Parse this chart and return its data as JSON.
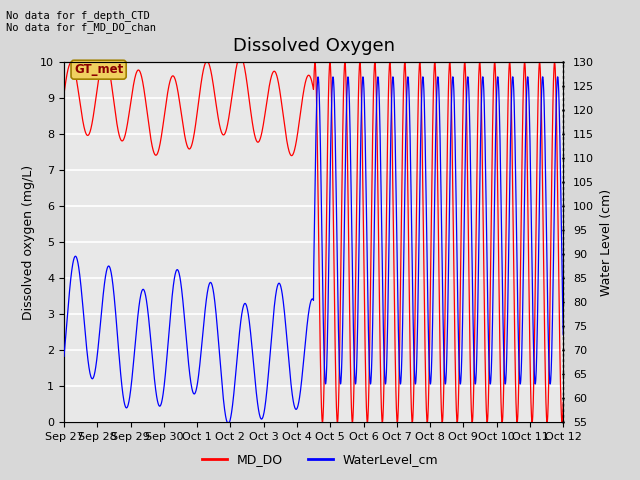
{
  "title": "Dissolved Oxygen",
  "top_left_text": "No data for f_depth_CTD\nNo data for f_MD_DO_chan",
  "gt_met_label": "GT_met",
  "ylabel_left": "Dissolved oxygen (mg/L)",
  "ylabel_right": "Water Level (cm)",
  "ylim_left": [
    0.0,
    10.0
  ],
  "ylim_right": [
    55,
    130
  ],
  "xtick_labels": [
    "Sep 27",
    "Sep 28",
    "Sep 29",
    "Sep 30",
    "Oct 1",
    "Oct 2",
    "Oct 3",
    "Oct 4",
    "Oct 5",
    "Oct 6",
    "Oct 7",
    "Oct 8",
    "Oct 9",
    "Oct 10",
    "Oct 11",
    "Oct 12"
  ],
  "legend_entries": [
    "MD_DO",
    "WaterLevel_cm"
  ],
  "legend_colors": [
    "red",
    "blue"
  ],
  "bg_color": "#d8d8d8",
  "plot_bg_color": "#e8e8e8",
  "grid_color": "#ffffff",
  "title_fontsize": 13,
  "label_fontsize": 9,
  "tick_fontsize": 8
}
